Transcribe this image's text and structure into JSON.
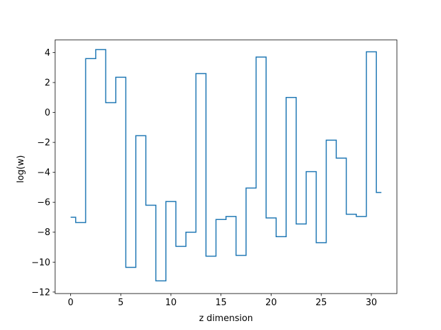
{
  "chart_data": {
    "type": "line",
    "drawstyle": "steps-mid",
    "title": "",
    "xlabel": "z dimension",
    "ylabel": "log(w)",
    "xlim": [
      -1.55,
      32.55
    ],
    "ylim": [
      -12.1,
      4.85
    ],
    "xticks": [
      0,
      5,
      10,
      15,
      20,
      25,
      30
    ],
    "yticks": [
      -12,
      -10,
      -8,
      -6,
      -4,
      -2,
      0,
      2,
      4
    ],
    "grid": false,
    "legend": "none",
    "series": [
      {
        "color": "#1f77b4",
        "x": [
          0,
          1,
          2,
          3,
          4,
          5,
          6,
          7,
          8,
          9,
          10,
          11,
          12,
          13,
          14,
          15,
          16,
          17,
          18,
          19,
          20,
          21,
          22,
          23,
          24,
          25,
          26,
          27,
          28,
          29,
          30,
          31
        ],
        "y": [
          -7.0,
          -7.35,
          3.6,
          4.2,
          0.65,
          2.35,
          -10.35,
          -1.55,
          -6.2,
          -11.25,
          -5.95,
          -8.95,
          -8.0,
          2.6,
          -9.6,
          -7.15,
          -6.95,
          -9.55,
          -5.05,
          3.7,
          -7.05,
          -8.3,
          1.0,
          -7.45,
          -3.95,
          -8.7,
          -1.85,
          -3.05,
          -6.8,
          -6.95,
          4.05,
          -5.35
        ]
      }
    ]
  }
}
